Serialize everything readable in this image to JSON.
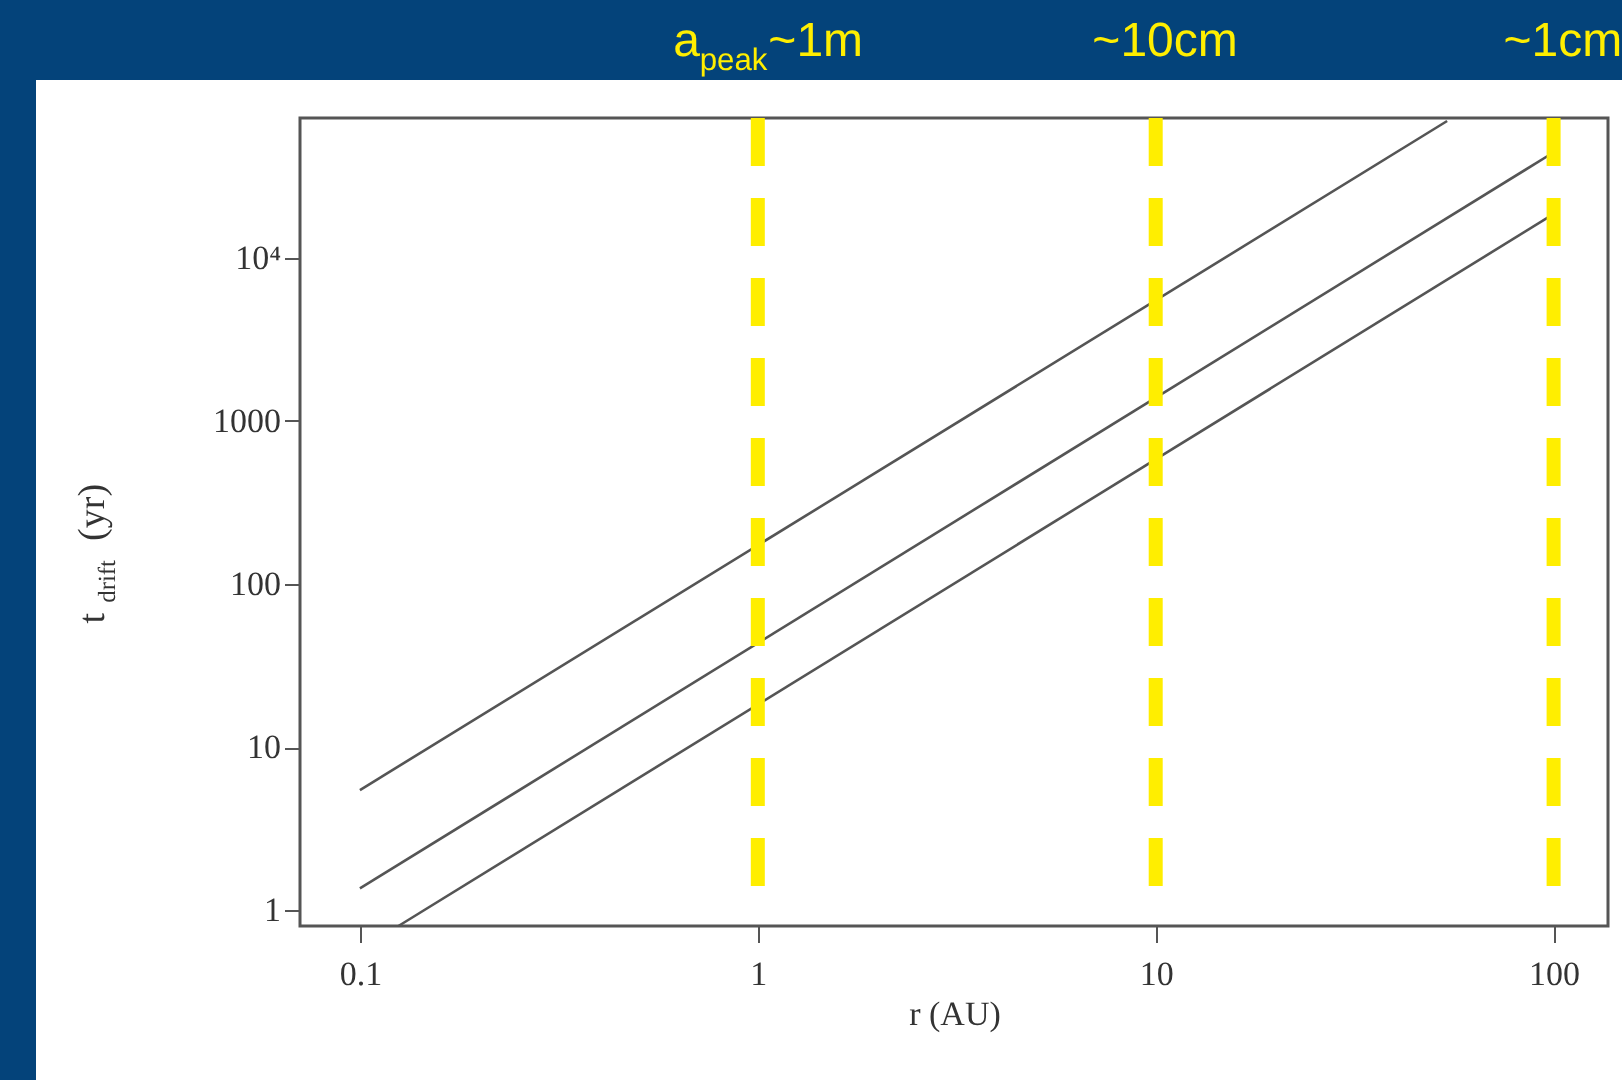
{
  "chart_data": {
    "type": "line",
    "xlabel": "r (AU)",
    "ylabel": "t$_{drift}$ (yr)",
    "xlim": [
      0.0707,
      137
    ],
    "ylim": [
      0.8,
      72000
    ],
    "log": "xy",
    "xticks": [
      0.1,
      1,
      10,
      100
    ],
    "yticks": [
      1,
      10,
      100,
      1000,
      {
        "value": 10000,
        "label": "10⁴"
      }
    ],
    "grid": false,
    "legend": false,
    "line_style": "solid",
    "series": [
      {
        "color": "#555555",
        "x": [
          0.1,
          54
        ],
        "values": [
          5.45,
          69000
        ]
      },
      {
        "color": "#555555",
        "x": [
          0.1,
          98
        ],
        "values": [
          1.36,
          43000
        ]
      },
      {
        "color": "#555555",
        "x": [
          0.125,
          98
        ],
        "values": [
          0.8,
          18000
        ]
      }
    ],
    "ref_lines": [
      {
        "axis": "x",
        "value": 1,
        "label": "a$_{peak}$~1m",
        "color": "#ffee00",
        "line_style": "dashed"
      },
      {
        "axis": "x",
        "value": 10,
        "label": "~10cm",
        "color": "#ffee00",
        "line_style": "dashed"
      },
      {
        "axis": "x",
        "value": 100,
        "label": "~1cm",
        "color": "#ffee00",
        "line_style": "dashed"
      }
    ]
  }
}
